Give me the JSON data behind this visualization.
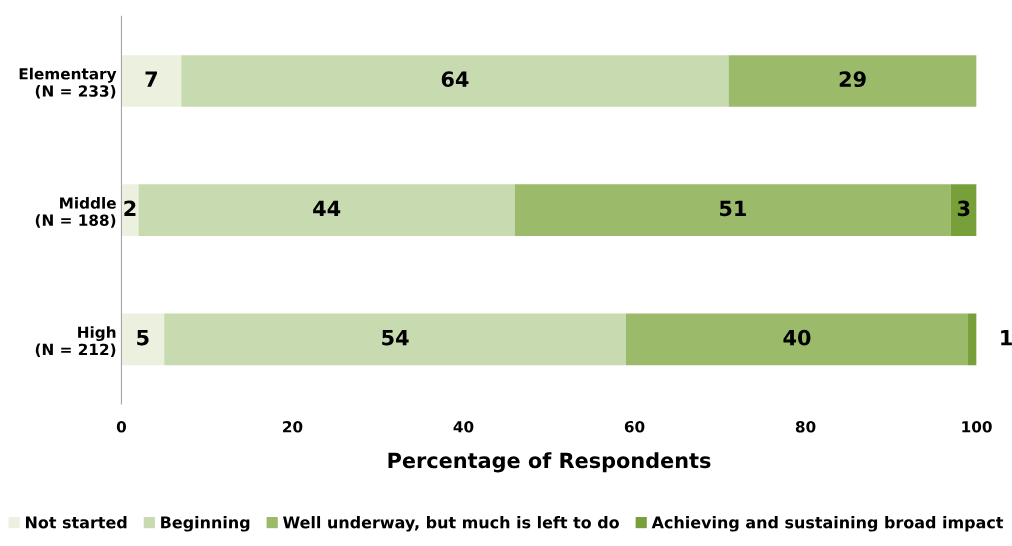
{
  "chart_data": {
    "type": "bar",
    "orientation": "horizontal",
    "stacked": true,
    "xlabel": "Percentage of Respondents",
    "categories": [
      "Elementary\n(N = 233)",
      "Middle\n(N = 188)",
      "High\n(N = 212)"
    ],
    "series": [
      {
        "name": "Not started",
        "color": "#ebf1de",
        "values": [
          7,
          2,
          5
        ]
      },
      {
        "name": "Beginning",
        "color": "#c7dab0",
        "values": [
          64,
          44,
          54
        ]
      },
      {
        "name": "Well underway, but much is left to do",
        "color": "#9bbb6b",
        "values": [
          29,
          51,
          40
        ]
      },
      {
        "name": "Achieving and sustaining broad impact",
        "color": "#77a03a",
        "values": [
          null,
          3,
          1
        ]
      }
    ],
    "xlim": [
      0,
      100
    ],
    "xticks": [
      0,
      20,
      40,
      60,
      80,
      100
    ],
    "grid": false,
    "legend": "bottom",
    "data_labels": true
  }
}
